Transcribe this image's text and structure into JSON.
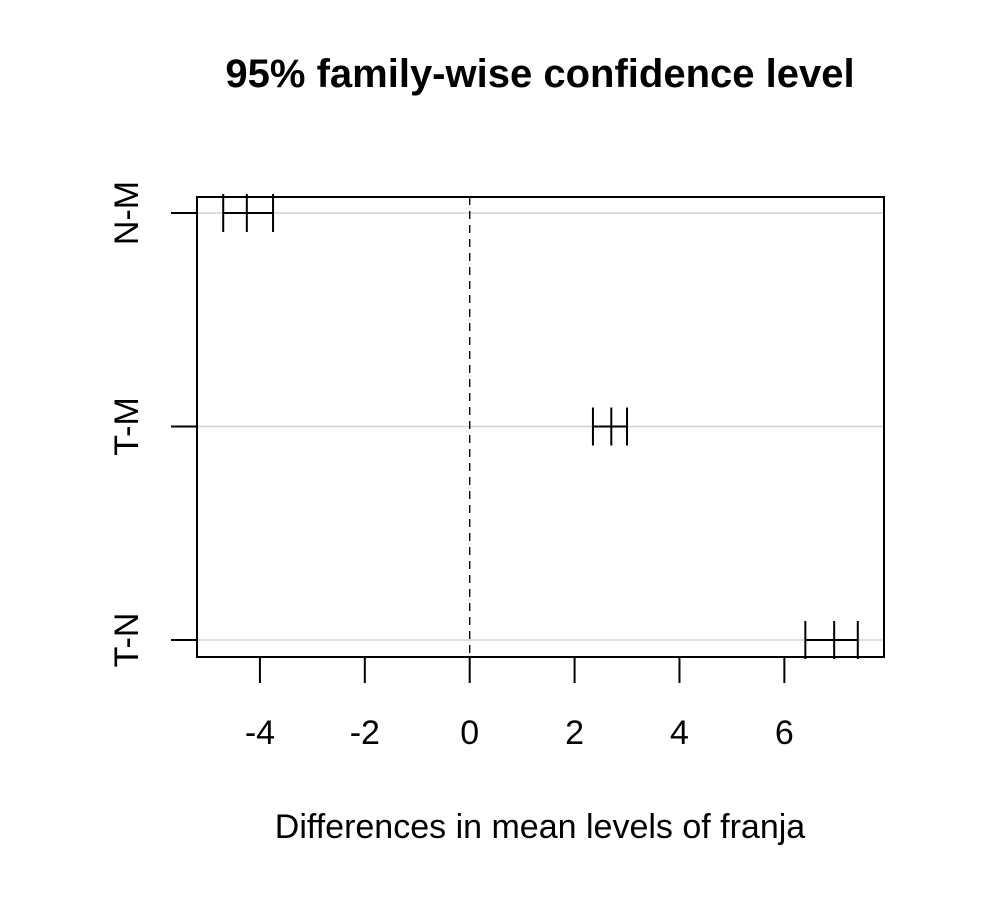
{
  "chart_data": {
    "type": "tukey-hsd",
    "title": "95% family-wise confidence level",
    "xlabel": "Differences in mean levels of franja",
    "ylabel": "",
    "xlim": [
      -5.2,
      7.9
    ],
    "xticks": [
      -4,
      -2,
      0,
      2,
      4,
      6
    ],
    "xtick_labels": [
      "-4",
      "-2",
      "0",
      "2",
      "4",
      "6"
    ],
    "zero_line": 0,
    "comparisons": [
      {
        "label": "N-M",
        "lwr": -4.7,
        "diff": -4.25,
        "upr": -3.75
      },
      {
        "label": "T-M",
        "lwr": 2.35,
        "diff": 2.7,
        "upr": 3.0
      },
      {
        "label": "T-N",
        "lwr": 6.4,
        "diff": 6.95,
        "upr": 7.4
      }
    ],
    "grid": "horizontal",
    "colors": {
      "frame": "#000000",
      "grid": "#d3d3d3",
      "interval": "#000000"
    }
  }
}
